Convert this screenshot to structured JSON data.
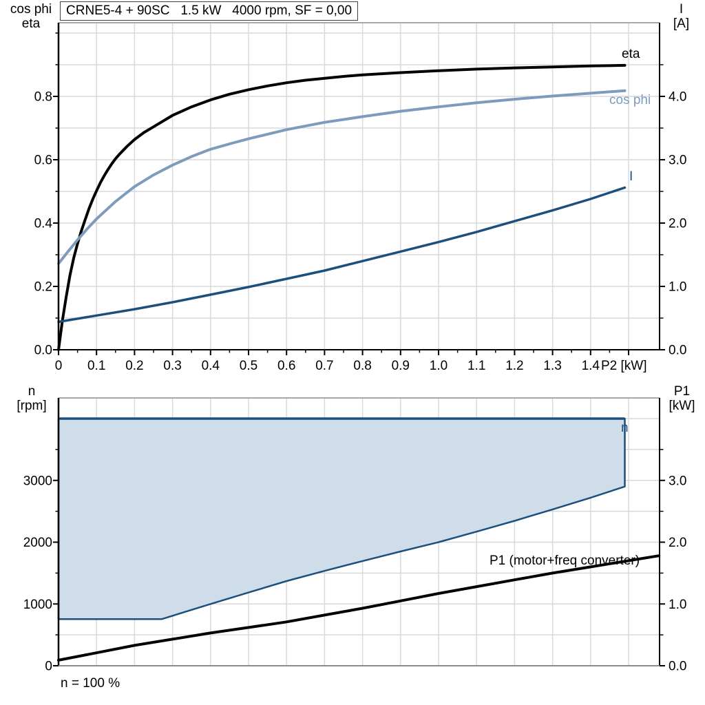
{
  "title": "CRNE5-4 + 90SC   1.5 kW   4000 rpm, SF = 0,00",
  "labels": {
    "top_left_axis": [
      "cos phi",
      "eta"
    ],
    "top_right_axis": [
      "I",
      "[A]"
    ],
    "bottom_left_axis": [
      "n",
      "[rpm]"
    ],
    "bottom_right_axis": [
      "P1",
      "[kW]"
    ],
    "x_axis": "P2 [kW]",
    "curve_eta": "eta",
    "curve_cosphi": "cos phi",
    "curve_current": "I",
    "curve_speed": "n",
    "curve_p1": "P1 (motor+freq converter)",
    "speed_note": "n = 100 %"
  },
  "colors": {
    "eta": "#000000",
    "cos_phi": "#7d9cbd",
    "current": "#1d4f7d",
    "envelope_border": "#1d4f7d",
    "envelope_fill": "#cfdce9",
    "p1": "#000000",
    "grid": "#d9d9d9",
    "axis": "#000000",
    "border_gray": "#8c8c8c",
    "tick_text": "#000000"
  },
  "chart_data": [
    {
      "type": "line",
      "title": "CRNE5-4 + 90SC   1.5 kW   4000 rpm, SF = 0,00",
      "xlabel": "P2 [kW]",
      "ylabel_left": "cos phi / eta",
      "ylabel_right": "I [A]",
      "xlim": [
        0,
        1.58
      ],
      "ylim_left": [
        0,
        1.03
      ],
      "ylim_right": [
        0,
        5.16
      ],
      "grid": true,
      "x_tick_values": [
        0,
        0.1,
        0.2,
        0.3,
        0.4,
        0.5,
        0.6,
        0.7,
        0.8,
        0.9,
        1.0,
        1.1,
        1.2,
        1.3,
        1.4
      ],
      "x_tick_labels": [
        "0",
        "0.1",
        "0.2",
        "0.3",
        "0.4",
        "0.5",
        "0.6",
        "0.7",
        "0.8",
        "0.9",
        "1.0",
        "1.1",
        "1.2",
        "1.3",
        "1.4"
      ],
      "left_tick_values": [
        0,
        0.2,
        0.4,
        0.6,
        0.8
      ],
      "left_tick_labels": [
        "0.0",
        "0.2",
        "0.4",
        "0.6",
        "0.8"
      ],
      "right_tick_values": [
        0,
        1,
        2,
        3,
        4
      ],
      "right_tick_labels": [
        "0.0",
        "1.0",
        "2.0",
        "3.0",
        "4.0"
      ],
      "series": [
        {
          "name": "eta",
          "axis": "left",
          "color": "#000000",
          "width": 4,
          "points": [
            [
              0,
              0
            ],
            [
              0.01,
              0.09
            ],
            [
              0.02,
              0.165
            ],
            [
              0.03,
              0.235
            ],
            [
              0.04,
              0.29
            ],
            [
              0.05,
              0.335
            ],
            [
              0.06,
              0.375
            ],
            [
              0.07,
              0.41
            ],
            [
              0.08,
              0.445
            ],
            [
              0.09,
              0.475
            ],
            [
              0.1,
              0.502
            ],
            [
              0.11,
              0.527
            ],
            [
              0.12,
              0.549
            ],
            [
              0.13,
              0.569
            ],
            [
              0.14,
              0.587
            ],
            [
              0.15,
              0.603
            ],
            [
              0.16,
              0.617
            ],
            [
              0.18,
              0.642
            ],
            [
              0.2,
              0.664
            ],
            [
              0.225,
              0.686
            ],
            [
              0.25,
              0.704
            ],
            [
              0.3,
              0.74
            ],
            [
              0.35,
              0.767
            ],
            [
              0.4,
              0.789
            ],
            [
              0.45,
              0.807
            ],
            [
              0.5,
              0.821
            ],
            [
              0.55,
              0.833
            ],
            [
              0.6,
              0.843
            ],
            [
              0.65,
              0.851
            ],
            [
              0.7,
              0.857
            ],
            [
              0.75,
              0.863
            ],
            [
              0.8,
              0.868
            ],
            [
              0.9,
              0.875
            ],
            [
              1.0,
              0.881
            ],
            [
              1.1,
              0.886
            ],
            [
              1.2,
              0.89
            ],
            [
              1.3,
              0.893
            ],
            [
              1.4,
              0.896
            ],
            [
              1.49,
              0.898
            ]
          ]
        },
        {
          "name": "cos phi",
          "axis": "left",
          "color": "#7d9cbd",
          "width": 4,
          "points": [
            [
              0,
              0.272
            ],
            [
              0.025,
              0.31
            ],
            [
              0.05,
              0.347
            ],
            [
              0.075,
              0.381
            ],
            [
              0.1,
              0.413
            ],
            [
              0.15,
              0.468
            ],
            [
              0.2,
              0.515
            ],
            [
              0.25,
              0.552
            ],
            [
              0.3,
              0.583
            ],
            [
              0.35,
              0.61
            ],
            [
              0.4,
              0.633
            ],
            [
              0.45,
              0.65
            ],
            [
              0.5,
              0.666
            ],
            [
              0.6,
              0.695
            ],
            [
              0.7,
              0.718
            ],
            [
              0.8,
              0.736
            ],
            [
              0.9,
              0.753
            ],
            [
              1.0,
              0.767
            ],
            [
              1.1,
              0.78
            ],
            [
              1.2,
              0.791
            ],
            [
              1.3,
              0.801
            ],
            [
              1.4,
              0.81
            ],
            [
              1.49,
              0.818
            ]
          ]
        },
        {
          "name": "I",
          "axis": "right",
          "color": "#1d4f7d",
          "width": 3.5,
          "points": [
            [
              0,
              0.44
            ],
            [
              0.1,
              0.54
            ],
            [
              0.2,
              0.64
            ],
            [
              0.3,
              0.75
            ],
            [
              0.4,
              0.87
            ],
            [
              0.5,
              0.99
            ],
            [
              0.6,
              1.12
            ],
            [
              0.7,
              1.25
            ],
            [
              0.8,
              1.4
            ],
            [
              0.9,
              1.55
            ],
            [
              1.0,
              1.7
            ],
            [
              1.1,
              1.86
            ],
            [
              1.2,
              2.03
            ],
            [
              1.3,
              2.2
            ],
            [
              1.4,
              2.38
            ],
            [
              1.49,
              2.56
            ]
          ]
        }
      ]
    },
    {
      "type": "area",
      "xlabel": "",
      "ylabel_left": "n [rpm]",
      "ylabel_right": "P1 [kW]",
      "xlim": [
        0,
        1.58
      ],
      "ylim_left": [
        0,
        4335
      ],
      "ylim_right": [
        0,
        4.33
      ],
      "grid": true,
      "left_tick_values": [
        0,
        1000,
        2000,
        3000
      ],
      "left_tick_labels": [
        "0",
        "1000",
        "2000",
        "3000"
      ],
      "right_tick_values": [
        0,
        1,
        2,
        3
      ],
      "right_tick_labels": [
        "0.0",
        "1.0",
        "2.0",
        "3.0"
      ],
      "annotation": "n = 100 %",
      "series": [
        {
          "name": "n",
          "type": "area",
          "axis": "left",
          "color": "#1d4f7d",
          "fill": "#cfdce9",
          "width": 2.5,
          "max_rpm": 4000,
          "min_rpm": 755,
          "lower_boundary": [
            [
              0.272,
              755
            ],
            [
              0.35,
              905
            ],
            [
              0.4,
              1000
            ],
            [
              0.5,
              1185
            ],
            [
              0.6,
              1370
            ],
            [
              0.7,
              1535
            ],
            [
              0.8,
              1695
            ],
            [
              0.9,
              1850
            ],
            [
              1.0,
              2000
            ],
            [
              1.1,
              2170
            ],
            [
              1.2,
              2345
            ],
            [
              1.3,
              2530
            ],
            [
              1.4,
              2720
            ],
            [
              1.49,
              2900
            ]
          ]
        },
        {
          "name": "P1 (motor+freq converter)",
          "type": "line",
          "axis": "right",
          "color": "#000000",
          "width": 4,
          "points": [
            [
              0,
              0.09
            ],
            [
              0.1,
              0.21
            ],
            [
              0.2,
              0.33
            ],
            [
              0.3,
              0.43
            ],
            [
              0.4,
              0.53
            ],
            [
              0.5,
              0.62
            ],
            [
              0.6,
              0.71
            ],
            [
              0.7,
              0.82
            ],
            [
              0.8,
              0.93
            ],
            [
              0.9,
              1.05
            ],
            [
              1.0,
              1.17
            ],
            [
              1.1,
              1.28
            ],
            [
              1.2,
              1.39
            ],
            [
              1.3,
              1.5
            ],
            [
              1.4,
              1.6
            ],
            [
              1.5,
              1.7
            ],
            [
              1.58,
              1.78
            ]
          ]
        }
      ]
    }
  ]
}
